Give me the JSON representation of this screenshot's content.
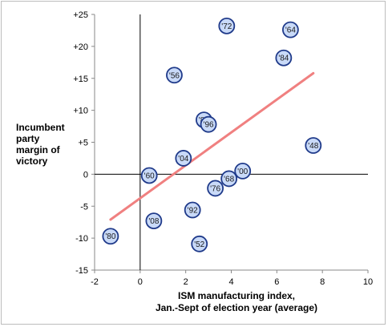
{
  "chart_data": {
    "type": "scatter",
    "ylabel_lines": [
      "Incumbent",
      "party",
      "margin of",
      "victory"
    ],
    "xlabel_lines": [
      "ISM manufacturing index,",
      "Jan.-Sept of election year (average)"
    ],
    "xlim": [
      -2,
      10
    ],
    "ylim": [
      -15,
      25
    ],
    "x_ticks": [
      -2,
      0,
      2,
      4,
      6,
      8,
      10
    ],
    "x_tick_labels": [
      "-2",
      "0",
      "2",
      "4",
      "6",
      "8",
      "10"
    ],
    "y_ticks": [
      25,
      20,
      15,
      10,
      5,
      0,
      -5,
      -10,
      -15
    ],
    "y_tick_labels": [
      "+25",
      "+20",
      "+15",
      "+10",
      "+5",
      "0",
      "-5",
      "-10",
      "-15"
    ],
    "grid": false,
    "points": [
      {
        "label": "'72",
        "x": 3.8,
        "y": 23.2
      },
      {
        "label": "'64",
        "x": 6.6,
        "y": 22.6
      },
      {
        "label": "'84",
        "x": 6.3,
        "y": 18.2
      },
      {
        "label": "'56",
        "x": 1.5,
        "y": 15.5
      },
      {
        "label": "'88",
        "x": 2.8,
        "y": 8.5
      },
      {
        "label": "'96",
        "x": 3.0,
        "y": 7.8
      },
      {
        "label": "'48",
        "x": 7.6,
        "y": 4.5
      },
      {
        "label": "'04",
        "x": 1.9,
        "y": 2.5
      },
      {
        "label": "'00",
        "x": 4.5,
        "y": 0.5
      },
      {
        "label": "'60",
        "x": 0.4,
        "y": -0.2
      },
      {
        "label": "'68",
        "x": 3.9,
        "y": -0.7
      },
      {
        "label": "'76",
        "x": 3.3,
        "y": -2.2
      },
      {
        "label": "'92",
        "x": 2.3,
        "y": -5.6
      },
      {
        "label": "'08",
        "x": 0.6,
        "y": -7.3
      },
      {
        "label": "'80",
        "x": -1.3,
        "y": -9.7
      },
      {
        "label": "'52",
        "x": 2.6,
        "y": -10.9
      }
    ],
    "trendline": {
      "x": [
        -1.3,
        7.6
      ],
      "y": [
        -7.1,
        15.8
      ],
      "color": "#f08080"
    },
    "point_fill": "#c9daf8",
    "point_stroke": "#1f3a8a",
    "axis_color": "#000000"
  }
}
